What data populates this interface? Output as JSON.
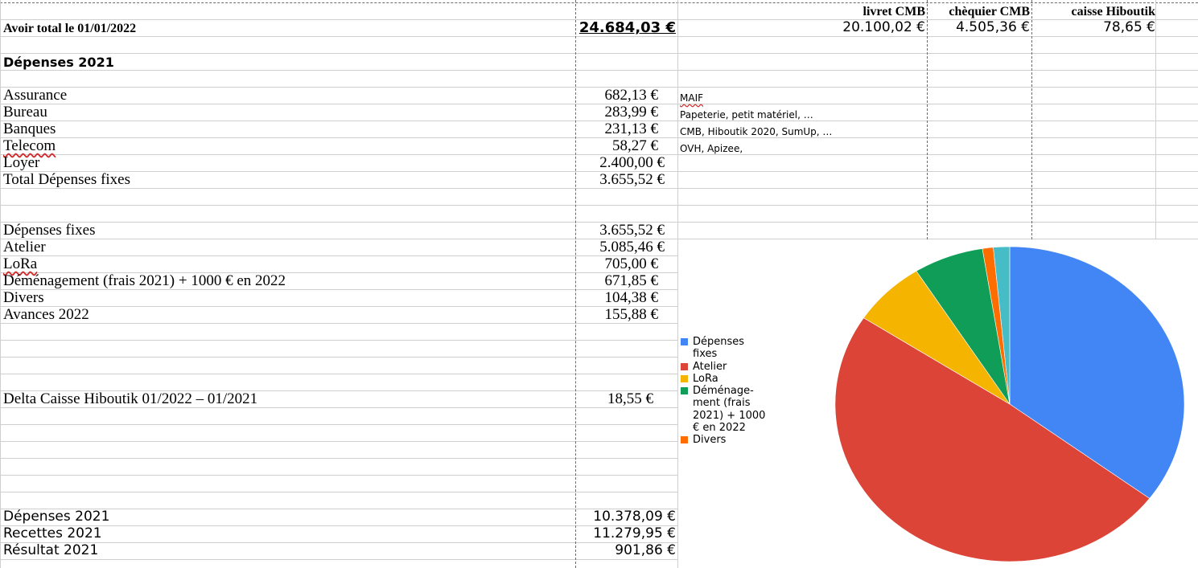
{
  "header": {
    "label": "Avoir total le 01/01/2022",
    "total": "24.684,03 €",
    "accounts": [
      {
        "name": "livret CMB",
        "value": "20.100,02 €"
      },
      {
        "name": "chèquier CMB",
        "value": "4.505,36 €"
      },
      {
        "name": "caisse Hiboutik",
        "value": "78,65 €"
      }
    ]
  },
  "section_title": "Dépenses 2021",
  "fixed_expenses": [
    {
      "label": "Assurance",
      "value": "682,13 €",
      "note": "MAIF"
    },
    {
      "label": "Bureau",
      "value": "283,99 €",
      "note": "Papeterie, petit matériel, …"
    },
    {
      "label": "Banques",
      "value": "231,13 €",
      "note": "CMB, Hiboutik 2020, SumUp, …"
    },
    {
      "label": "Telecom",
      "value": "58,27 €",
      "note": "OVH, Apizee,"
    },
    {
      "label": "Loyer",
      "value": "2.400,00 €",
      "note": ""
    }
  ],
  "fixed_total": {
    "label": "Total Dépenses fixes",
    "value": "3.655,52 €"
  },
  "categories": [
    {
      "label": "Dépenses fixes",
      "value": "3.655,52 €"
    },
    {
      "label": "Atelier",
      "value": "5.085,46 €"
    },
    {
      "label": "LoRa",
      "value": "705,00 €"
    },
    {
      "label": "Déménagement (frais 2021) + 1000 € en 2022",
      "value": "671,85 €"
    },
    {
      "label": "Divers",
      "value": "104,38 €"
    },
    {
      "label": "Avances 2022",
      "value": "155,88 €"
    }
  ],
  "delta": {
    "label": "Delta Caisse Hiboutik 01/2022 – 01/2021",
    "value": "18,55 €"
  },
  "summary": [
    {
      "label": "Dépenses 2021",
      "value": "10.378,09 €"
    },
    {
      "label": "Recettes 2021",
      "value": "11.279,95 €"
    },
    {
      "label": "Résultat 2021",
      "value": "901,86 €"
    }
  ],
  "chart_data": {
    "type": "pie",
    "title": "",
    "legend_position": "left",
    "slices": [
      {
        "name": "Dépenses fixes",
        "legend": "Dépenses\nfixes",
        "value": 3655.52,
        "color": "#4285f4"
      },
      {
        "name": "Atelier",
        "legend": "Atelier",
        "value": 5085.46,
        "color": "#db4437"
      },
      {
        "name": "LoRa",
        "legend": "LoRa",
        "value": 705.0,
        "color": "#f4b400"
      },
      {
        "name": "Déménagement (frais 2021) + 1000 € en 2022",
        "legend": "Déménage-\nment (frais\n2021) + 1000\n€ en 2022",
        "value": 671.85,
        "color": "#0f9d58"
      },
      {
        "name": "Divers",
        "legend": "Divers",
        "value": 104.38,
        "color": "#ff6d01"
      },
      {
        "name": "Avances 2022",
        "legend": "",
        "value": 155.88,
        "color": "#46bdc6"
      }
    ]
  }
}
